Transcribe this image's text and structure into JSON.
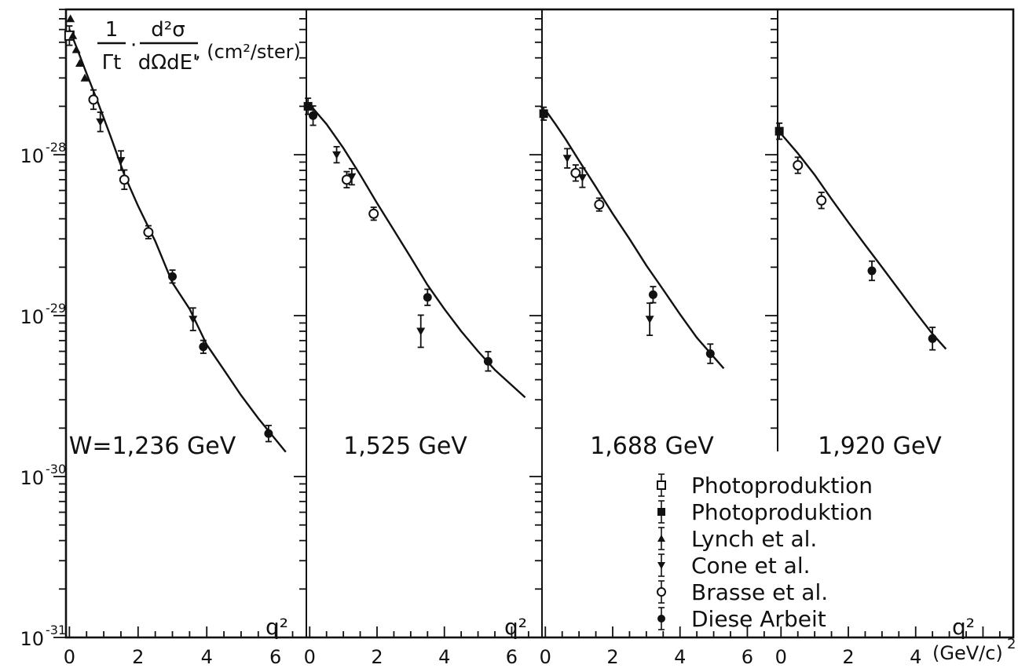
{
  "chart_data": {
    "type": "scatter",
    "y_axis": {
      "log": true,
      "ylim": [
        1e-31,
        8e-28
      ],
      "tick_labels": [
        {
          "value": 1e-28,
          "base": "10",
          "exp": "-28"
        },
        {
          "value": 1e-29,
          "base": "10",
          "exp": "-29"
        },
        {
          "value": 1e-30,
          "base": "10",
          "exp": "-30"
        },
        {
          "value": 1e-31,
          "base": "10",
          "exp": "-31"
        }
      ],
      "label": {
        "frac1_num": "1",
        "frac1_den": "Γt",
        "dot": "·",
        "frac2_num": "d²σ",
        "frac2_den": "dΩdE'",
        "unit": ", (cm²/ster)"
      }
    },
    "x_unit_label": "(GeV/c)",
    "x_unit_exp": "2",
    "panels": [
      {
        "label": "W=1,236 GeV",
        "xaxis_label": "q²",
        "xlim": [
          -0.1,
          6.9
        ],
        "x_ticks": [
          "0",
          "2",
          "4",
          "6"
        ],
        "curve": [
          [
            0,
            6e-28
          ],
          [
            0.2,
            4.7e-28
          ],
          [
            0.5,
            3.2e-28
          ],
          [
            0.8,
            2.2e-28
          ],
          [
            1.2,
            1.3e-28
          ],
          [
            1.6,
            7.5e-29
          ],
          [
            2,
            4.8e-29
          ],
          [
            2.5,
            2.9e-29
          ],
          [
            3,
            1.6e-29
          ],
          [
            3.5,
            1.1e-29
          ],
          [
            4,
            6.6e-30
          ],
          [
            4.5,
            4.6e-30
          ],
          [
            5,
            3.2e-30
          ],
          [
            5.5,
            2.3e-30
          ],
          [
            6.3,
            1.42e-30
          ]
        ],
        "points": [
          {
            "x": 0.0,
            "y": 5.5e-28,
            "series": "Photoproduktion (open square)",
            "err": 0.06
          },
          {
            "x": 0.03,
            "y": 7e-28,
            "series": "Lynch et al.",
            "err": 0
          },
          {
            "x": 0.1,
            "y": 5.5e-28,
            "series": "Lynch et al.",
            "err": 0
          },
          {
            "x": 0.2,
            "y": 4.5e-28,
            "series": "Lynch et al.",
            "err": 0
          },
          {
            "x": 0.3,
            "y": 3.7e-28,
            "series": "Lynch et al.",
            "err": 0
          },
          {
            "x": 0.45,
            "y": 3e-28,
            "series": "Lynch et al.",
            "err": 0
          },
          {
            "x": 0.7,
            "y": 2.2e-28,
            "series": "Brasse et al.",
            "err": 0.06
          },
          {
            "x": 0.9,
            "y": 1.6e-28,
            "series": "Cone et al.",
            "err": 0.06
          },
          {
            "x": 1.5,
            "y": 9.2e-29,
            "series": "Cone et al.",
            "err": 0.06
          },
          {
            "x": 1.6,
            "y": 7e-29,
            "series": "Brasse et al.",
            "err": 0.06
          },
          {
            "x": 2.3,
            "y": 3.3e-29,
            "series": "Brasse et al.",
            "err": 0.04
          },
          {
            "x": 3.0,
            "y": 1.75e-29,
            "series": "Diese Arbeit",
            "err": 0.04
          },
          {
            "x": 3.6,
            "y": 9.5e-30,
            "series": "Cone et al.",
            "err": 0.07
          },
          {
            "x": 3.9,
            "y": 6.4e-30,
            "series": "Diese Arbeit",
            "err": 0.04
          },
          {
            "x": 5.8,
            "y": 1.85e-30,
            "series": "Diese Arbeit",
            "err": 0.05
          }
        ]
      },
      {
        "label": "1,525 GeV",
        "xaxis_label": "q²",
        "xlim": [
          -0.1,
          6.9
        ],
        "x_ticks": [
          "0",
          "2",
          "4",
          "6"
        ],
        "curve": [
          [
            0,
            2.05e-28
          ],
          [
            0.5,
            1.55e-28
          ],
          [
            1,
            1.1e-28
          ],
          [
            1.5,
            7.5e-29
          ],
          [
            2,
            5e-29
          ],
          [
            2.5,
            3.4e-29
          ],
          [
            3,
            2.3e-29
          ],
          [
            3.5,
            1.55e-29
          ],
          [
            4,
            1.1e-29
          ],
          [
            4.5,
            8e-30
          ],
          [
            5,
            6e-30
          ],
          [
            5.5,
            4.6e-30
          ],
          [
            6,
            3.7e-30
          ],
          [
            6.4,
            3.1e-30
          ]
        ],
        "points": [
          {
            "x": -0.05,
            "y": 2e-28,
            "series": "Photoproduktion (filled square)",
            "err": 0.05
          },
          {
            "x": 0.1,
            "y": 1.75e-28,
            "series": "Diese Arbeit",
            "err": 0.06
          },
          {
            "x": 0.8,
            "y": 1e-28,
            "series": "Cone et al.",
            "err": 0.05
          },
          {
            "x": 1.1,
            "y": 7e-29,
            "series": "Brasse et al.",
            "err": 0.05
          },
          {
            "x": 1.25,
            "y": 7.3e-29,
            "series": "Cone et al.",
            "err": 0.05
          },
          {
            "x": 1.9,
            "y": 4.3e-29,
            "series": "Brasse et al.",
            "err": 0.04
          },
          {
            "x": 3.3,
            "y": 8e-30,
            "series": "Cone et al.",
            "err": 0.1
          },
          {
            "x": 3.5,
            "y": 1.3e-29,
            "series": "Diese Arbeit",
            "err": 0.05
          },
          {
            "x": 5.3,
            "y": 5.2e-30,
            "series": "Diese Arbeit",
            "err": 0.06
          }
        ]
      },
      {
        "label": "1,688 GeV",
        "xaxis_label": "",
        "xlim": [
          -0.1,
          6.9
        ],
        "x_ticks": [
          "0",
          "2",
          "4",
          "6"
        ],
        "curve": [
          [
            0,
            1.9e-28
          ],
          [
            0.3,
            1.55e-28
          ],
          [
            0.6,
            1.25e-28
          ],
          [
            1,
            9.2e-29
          ],
          [
            1.5,
            6.3e-29
          ],
          [
            2,
            4.3e-29
          ],
          [
            2.5,
            3e-29
          ],
          [
            3,
            2.05e-29
          ],
          [
            3.5,
            1.45e-29
          ],
          [
            4,
            1.02e-29
          ],
          [
            4.5,
            7.3e-30
          ],
          [
            5.3,
            4.7e-30
          ]
        ],
        "points": [
          {
            "x": -0.05,
            "y": 1.8e-28,
            "series": "Photoproduktion (filled square)",
            "err": 0.04
          },
          {
            "x": 0.65,
            "y": 9.5e-29,
            "series": "Cone et al.",
            "err": 0.06
          },
          {
            "x": 0.9,
            "y": 7.7e-29,
            "series": "Brasse et al.",
            "err": 0.05
          },
          {
            "x": 1.1,
            "y": 7.2e-29,
            "series": "Cone et al.",
            "err": 0.06
          },
          {
            "x": 1.6,
            "y": 4.9e-29,
            "series": "Brasse et al.",
            "err": 0.04
          },
          {
            "x": 3.1,
            "y": 9.5e-30,
            "series": "Cone et al.",
            "err": 0.1
          },
          {
            "x": 3.2,
            "y": 1.35e-29,
            "series": "Diese Arbeit",
            "err": 0.05
          },
          {
            "x": 4.9,
            "y": 5.8e-30,
            "series": "Diese Arbeit",
            "err": 0.06
          }
        ]
      },
      {
        "label": "1,920 GeV",
        "xaxis_label": "q²",
        "xlim": [
          -0.1,
          6.9
        ],
        "x_ticks": [
          "0",
          "2",
          "4"
        ],
        "curve": [
          [
            0,
            1.35e-28
          ],
          [
            0.5,
            1.02e-28
          ],
          [
            1,
            7.5e-29
          ],
          [
            1.5,
            5.3e-29
          ],
          [
            2,
            3.8e-29
          ],
          [
            2.5,
            2.75e-29
          ],
          [
            3,
            2e-29
          ],
          [
            3.5,
            1.45e-29
          ],
          [
            4,
            1.05e-29
          ],
          [
            4.5,
            7.7e-30
          ],
          [
            4.9,
            6.2e-30
          ]
        ],
        "points": [
          {
            "x": -0.05,
            "y": 1.4e-28,
            "series": "Photoproduktion (filled square)",
            "err": 0.05
          },
          {
            "x": 0.5,
            "y": 8.6e-29,
            "series": "Brasse et al.",
            "err": 0.05
          },
          {
            "x": 1.2,
            "y": 5.2e-29,
            "series": "Brasse et al.",
            "err": 0.05
          },
          {
            "x": 2.7,
            "y": 1.9e-29,
            "series": "Diese Arbeit",
            "err": 0.06
          },
          {
            "x": 4.5,
            "y": 7.2e-30,
            "series": "Diese Arbeit",
            "err": 0.07
          }
        ]
      }
    ],
    "legend": {
      "placement": "bottom-right",
      "entries": [
        {
          "label": "Photoproduktion",
          "marker": "open-square"
        },
        {
          "label": "Photoproduktion",
          "marker": "filled-square"
        },
        {
          "label": "Lynch et al.",
          "marker": "triangle-up"
        },
        {
          "label": "Cone et al.",
          "marker": "triangle-down"
        },
        {
          "label": "Brasse et al.",
          "marker": "open-circle"
        },
        {
          "label": "Diese Arbeit",
          "marker": "filled-circle"
        }
      ]
    }
  }
}
